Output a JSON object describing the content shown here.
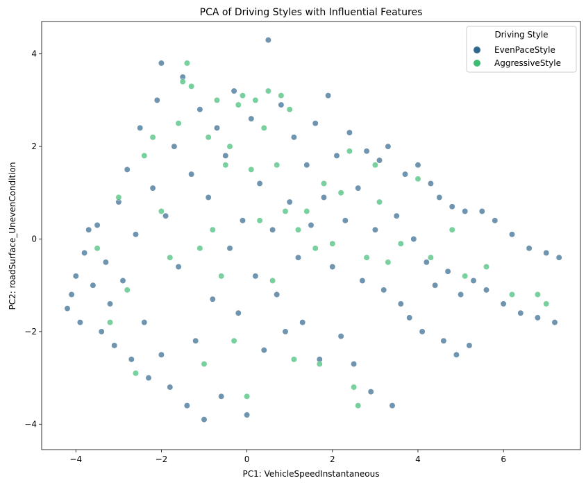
{
  "chart_data": {
    "type": "scatter",
    "title": "PCA of Driving Styles with Influential Features",
    "xlabel": "PC1: VehicleSpeedInstantaneous",
    "ylabel": "PC2: roadSurface_UnevenCondition",
    "xlim": [
      -4.8,
      7.8
    ],
    "ylim": [
      -4.55,
      4.7
    ],
    "xticks": [
      -4,
      -2,
      0,
      2,
      4,
      6
    ],
    "yticks": [
      -4,
      -2,
      0,
      2,
      4
    ],
    "xtick_labels": [
      "−4",
      "−2",
      "0",
      "2",
      "4",
      "6"
    ],
    "ytick_labels": [
      "−4",
      "−2",
      "0",
      "2",
      "4"
    ],
    "grid": false,
    "legend": {
      "title": "Driving Style",
      "placement": "top-right",
      "entries": [
        "EvenPaceStyle",
        "AggressiveStyle"
      ]
    },
    "series": [
      {
        "name": "EvenPaceStyle",
        "color": "#30678d",
        "points": [
          [
            -4.2,
            -1.5
          ],
          [
            -4.1,
            -1.2
          ],
          [
            -4.0,
            -0.8
          ],
          [
            -3.9,
            -1.8
          ],
          [
            -3.8,
            -0.3
          ],
          [
            -3.7,
            0.2
          ],
          [
            -3.6,
            -1.0
          ],
          [
            -3.5,
            0.3
          ],
          [
            -3.4,
            -2.0
          ],
          [
            -3.3,
            -0.5
          ],
          [
            -3.2,
            -1.4
          ],
          [
            -3.1,
            -2.3
          ],
          [
            -3.0,
            0.8
          ],
          [
            -2.9,
            -0.9
          ],
          [
            -2.8,
            1.5
          ],
          [
            -2.7,
            -2.6
          ],
          [
            -2.6,
            0.1
          ],
          [
            -2.5,
            2.4
          ],
          [
            -2.4,
            -1.8
          ],
          [
            -2.3,
            -3.0
          ],
          [
            -2.2,
            1.1
          ],
          [
            -2.1,
            3.0
          ],
          [
            -2.0,
            -2.5
          ],
          [
            -2.0,
            3.8
          ],
          [
            -1.9,
            0.5
          ],
          [
            -1.8,
            -3.2
          ],
          [
            -1.7,
            2.0
          ],
          [
            -1.6,
            -0.6
          ],
          [
            -1.5,
            3.5
          ],
          [
            -1.4,
            -3.6
          ],
          [
            -1.3,
            1.4
          ],
          [
            -1.2,
            -2.2
          ],
          [
            -1.1,
            2.8
          ],
          [
            -1.0,
            -3.9
          ],
          [
            -0.9,
            0.9
          ],
          [
            -0.8,
            -1.3
          ],
          [
            -0.7,
            2.4
          ],
          [
            -0.6,
            -3.4
          ],
          [
            -0.5,
            1.8
          ],
          [
            -0.4,
            -0.2
          ],
          [
            -0.3,
            3.2
          ],
          [
            -0.2,
            -1.6
          ],
          [
            -0.1,
            0.4
          ],
          [
            0.0,
            -3.8
          ],
          [
            0.1,
            2.6
          ],
          [
            0.2,
            -0.8
          ],
          [
            0.3,
            1.2
          ],
          [
            0.4,
            -2.4
          ],
          [
            0.5,
            4.3
          ],
          [
            0.6,
            0.2
          ],
          [
            0.7,
            -1.2
          ],
          [
            0.8,
            2.9
          ],
          [
            0.9,
            -2.0
          ],
          [
            1.0,
            0.8
          ],
          [
            1.1,
            2.2
          ],
          [
            1.2,
            -0.4
          ],
          [
            1.3,
            -1.8
          ],
          [
            1.4,
            1.6
          ],
          [
            1.5,
            0.3
          ],
          [
            1.6,
            2.5
          ],
          [
            1.7,
            -2.6
          ],
          [
            1.8,
            0.9
          ],
          [
            1.9,
            3.1
          ],
          [
            2.0,
            -0.6
          ],
          [
            2.1,
            1.8
          ],
          [
            2.2,
            -2.1
          ],
          [
            2.3,
            0.4
          ],
          [
            2.4,
            2.3
          ],
          [
            2.5,
            -2.7
          ],
          [
            2.6,
            1.1
          ],
          [
            2.7,
            -0.9
          ],
          [
            2.8,
            1.9
          ],
          [
            2.9,
            -3.3
          ],
          [
            3.0,
            0.2
          ],
          [
            3.1,
            1.7
          ],
          [
            3.2,
            -1.1
          ],
          [
            3.3,
            2.0
          ],
          [
            3.4,
            -3.6
          ],
          [
            3.5,
            0.5
          ],
          [
            3.6,
            -1.4
          ],
          [
            3.7,
            1.4
          ],
          [
            3.8,
            -1.7
          ],
          [
            3.9,
            0.0
          ],
          [
            4.0,
            1.6
          ],
          [
            4.1,
            -2.0
          ],
          [
            4.2,
            -0.5
          ],
          [
            4.3,
            1.2
          ],
          [
            4.4,
            -1.0
          ],
          [
            4.5,
            0.9
          ],
          [
            4.6,
            -2.2
          ],
          [
            4.7,
            -0.7
          ],
          [
            4.8,
            0.7
          ],
          [
            4.9,
            -2.5
          ],
          [
            5.0,
            -1.2
          ],
          [
            5.1,
            0.6
          ],
          [
            5.2,
            -2.3
          ],
          [
            5.3,
            -0.9
          ],
          [
            5.5,
            0.6
          ],
          [
            5.6,
            -1.1
          ],
          [
            5.8,
            0.4
          ],
          [
            6.0,
            -1.4
          ],
          [
            6.2,
            0.1
          ],
          [
            6.4,
            -1.6
          ],
          [
            6.6,
            -0.2
          ],
          [
            6.8,
            -1.7
          ],
          [
            7.0,
            -0.3
          ],
          [
            7.2,
            -1.8
          ],
          [
            7.3,
            -0.4
          ]
        ]
      },
      {
        "name": "AggressiveStyle",
        "color": "#3dbc74",
        "points": [
          [
            -3.5,
            -0.2
          ],
          [
            -3.2,
            -1.8
          ],
          [
            -3.0,
            0.9
          ],
          [
            -2.8,
            -1.1
          ],
          [
            -2.6,
            -2.9
          ],
          [
            -2.4,
            1.8
          ],
          [
            -2.2,
            2.2
          ],
          [
            -2.0,
            0.6
          ],
          [
            -1.8,
            -0.4
          ],
          [
            -1.6,
            2.5
          ],
          [
            -1.5,
            3.4
          ],
          [
            -1.4,
            3.8
          ],
          [
            -1.3,
            3.3
          ],
          [
            -1.1,
            -0.2
          ],
          [
            -1.0,
            -2.7
          ],
          [
            -0.9,
            2.2
          ],
          [
            -0.8,
            0.2
          ],
          [
            -0.7,
            3.0
          ],
          [
            -0.6,
            -0.8
          ],
          [
            -0.5,
            1.6
          ],
          [
            -0.4,
            2.0
          ],
          [
            -0.3,
            -2.2
          ],
          [
            -0.2,
            2.9
          ],
          [
            -0.1,
            3.1
          ],
          [
            0.0,
            -3.4
          ],
          [
            0.1,
            1.5
          ],
          [
            0.2,
            3.0
          ],
          [
            0.3,
            0.4
          ],
          [
            0.4,
            2.4
          ],
          [
            0.5,
            3.2
          ],
          [
            0.6,
            -0.9
          ],
          [
            0.7,
            1.6
          ],
          [
            0.8,
            3.1
          ],
          [
            0.9,
            0.6
          ],
          [
            1.0,
            2.8
          ],
          [
            1.1,
            -2.6
          ],
          [
            1.2,
            0.2
          ],
          [
            1.4,
            0.6
          ],
          [
            1.6,
            -0.2
          ],
          [
            1.7,
            -2.7
          ],
          [
            1.8,
            1.2
          ],
          [
            2.0,
            -0.1
          ],
          [
            2.2,
            1.0
          ],
          [
            2.4,
            1.9
          ],
          [
            2.5,
            -3.2
          ],
          [
            2.6,
            -3.6
          ],
          [
            2.8,
            -0.4
          ],
          [
            3.0,
            1.6
          ],
          [
            3.1,
            0.8
          ],
          [
            3.3,
            -0.5
          ],
          [
            3.6,
            -0.1
          ],
          [
            4.0,
            1.3
          ],
          [
            4.3,
            -0.4
          ],
          [
            4.8,
            0.2
          ],
          [
            5.1,
            -0.8
          ],
          [
            5.6,
            -0.6
          ],
          [
            6.2,
            -1.2
          ],
          [
            6.8,
            -1.2
          ],
          [
            7.0,
            -1.4
          ]
        ]
      }
    ]
  }
}
